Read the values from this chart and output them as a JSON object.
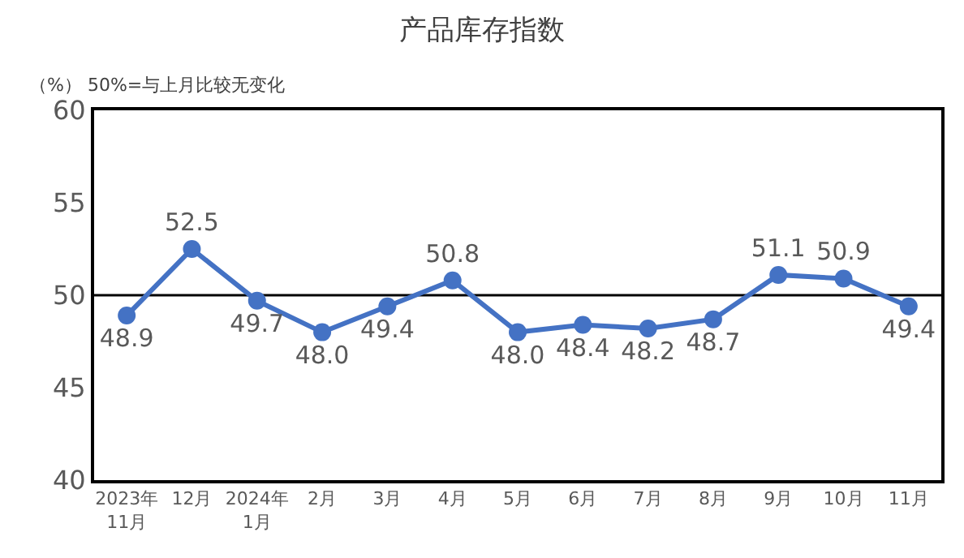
{
  "chart_data": {
    "type": "line",
    "title": "产品库存指数",
    "annotations": [
      "（%） 50%=与上月比较无变化"
    ],
    "categories": [
      "2023年\n11月",
      "12月",
      "2024年\n1月",
      "2月",
      "3月",
      "4月",
      "5月",
      "6月",
      "7月",
      "8月",
      "9月",
      "10月",
      "11月"
    ],
    "series": [
      {
        "color": "#4472c4",
        "values": [
          48.9,
          52.5,
          49.7,
          48.0,
          49.4,
          50.8,
          48.0,
          48.4,
          48.2,
          48.7,
          51.1,
          50.9,
          49.4
        ],
        "value_labels": [
          "48.9",
          "52.5",
          "49.7",
          "48.0",
          "49.4",
          "50.8",
          "48.0",
          "48.4",
          "48.2",
          "48.7",
          "51.1",
          "50.9",
          "49.4"
        ]
      }
    ],
    "ylim": [
      40,
      60
    ],
    "yticks": [
      40,
      45,
      50,
      55,
      60
    ],
    "grid": false,
    "legend": false,
    "marker": "circle",
    "line_style": "solid",
    "ref_lines": [
      {
        "axis": "y",
        "value": 50,
        "color": "#000000"
      }
    ]
  }
}
